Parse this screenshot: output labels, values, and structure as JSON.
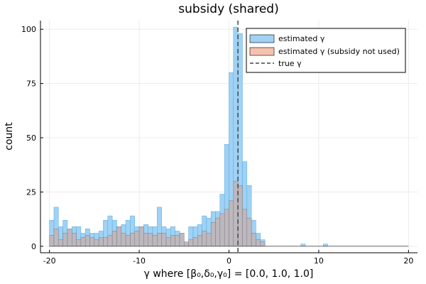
{
  "chart_data": {
    "type": "bar",
    "title": "subsidy (shared)",
    "xlabel": "γ where [β₀,δ₀,γ₀] = [0.0, 1.0, 1.0]",
    "ylabel": "count",
    "xlim": [
      -21,
      21
    ],
    "ylim": [
      -3,
      104
    ],
    "xticks": [
      -20,
      -10,
      0,
      10,
      20
    ],
    "yticks": [
      0,
      25,
      50,
      75,
      100
    ],
    "grid": true,
    "legend_position": "top-right",
    "bin_width": 0.5,
    "bin_start": -20,
    "colors": {
      "estimated": "#9fd2f5",
      "estimated_edge": "#5aa9dc",
      "not_used": "#f4c2ae",
      "overlap": "#bdb8bd",
      "true_line": "#444444"
    },
    "series": [
      {
        "name": "estimated γ",
        "values": [
          12,
          18,
          9,
          12,
          6,
          9,
          9,
          6,
          8,
          6,
          6,
          7,
          12,
          14,
          12,
          9,
          10,
          12,
          14,
          9,
          9,
          10,
          9,
          9,
          18,
          9,
          8,
          9,
          7,
          6,
          2,
          9,
          9,
          10,
          14,
          13,
          16,
          16,
          24,
          47,
          80,
          101,
          98,
          39,
          28,
          12,
          6,
          3,
          0,
          0,
          0,
          0,
          0,
          0,
          0,
          0,
          0,
          0,
          0,
          0,
          0,
          0,
          0,
          0,
          0,
          0,
          0,
          0,
          0,
          0,
          0,
          0,
          0,
          0,
          0,
          0,
          0,
          0,
          0,
          0
        ]
      },
      {
        "name": "estimated γ (subsidy not used)",
        "values": [
          5,
          8,
          3,
          6,
          8,
          6,
          3,
          4,
          5,
          4,
          3,
          4,
          4,
          5,
          7,
          9,
          6,
          5,
          6,
          7,
          9,
          6,
          6,
          5,
          6,
          6,
          4,
          5,
          5,
          6,
          2,
          3,
          4,
          5,
          7,
          6,
          11,
          13,
          15,
          17,
          21,
          30,
          28,
          17,
          13,
          6,
          3,
          2,
          0,
          0,
          0,
          0,
          0,
          0,
          0,
          0,
          0,
          0,
          0,
          0,
          0,
          0,
          0,
          0,
          0,
          0,
          0,
          0,
          0,
          0,
          0,
          0,
          0,
          0,
          0,
          0,
          0,
          0,
          0,
          0
        ]
      }
    ],
    "extra_bins": [
      {
        "x": 8,
        "value": 1,
        "series": "estimated γ"
      },
      {
        "x": 10.5,
        "value": 1,
        "series": "estimated γ"
      }
    ],
    "true_value": {
      "name": "true γ",
      "x": 1.0
    }
  }
}
